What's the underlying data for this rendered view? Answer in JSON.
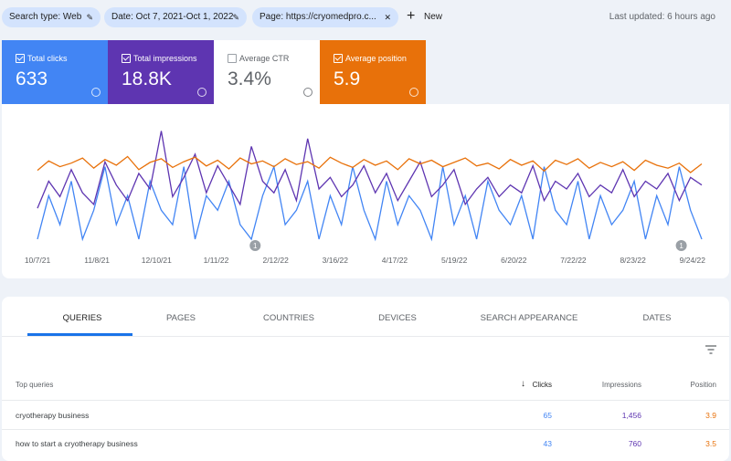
{
  "filters": [
    "Search type: Web",
    "Date: Oct 7, 2021-Oct 1, 2022",
    "Page: https://cryomedpro.c..."
  ],
  "new_button": "New",
  "last_updated": "Last updated: 6 hours ago",
  "metrics": [
    {
      "name": "Total clicks",
      "value": "633",
      "checked": true,
      "color": "#4285f4"
    },
    {
      "name": "Total impressions",
      "value": "18.8K",
      "checked": true,
      "color": "#5e35b1"
    },
    {
      "name": "Average CTR",
      "value": "3.4%",
      "checked": false,
      "color": "#ffffff"
    },
    {
      "name": "Average position",
      "value": "5.9",
      "checked": true,
      "color": "#e8710a"
    }
  ],
  "chart_data": {
    "type": "line",
    "xlim": [
      0,
      357
    ],
    "xticks": [
      {
        "value": 0,
        "label": "10/7/21"
      },
      {
        "value": 32,
        "label": "11/8/21"
      },
      {
        "value": 64,
        "label": "12/10/21"
      },
      {
        "value": 96,
        "label": "1/11/22"
      },
      {
        "value": 128,
        "label": "2/12/22"
      },
      {
        "value": 160,
        "label": "3/16/22"
      },
      {
        "value": 192,
        "label": "4/17/22"
      },
      {
        "value": 224,
        "label": "5/19/22"
      },
      {
        "value": 256,
        "label": "6/20/22"
      },
      {
        "value": 288,
        "label": "7/22/22"
      },
      {
        "value": 320,
        "label": "8/23/22"
      },
      {
        "value": 352,
        "label": "9/24/22"
      }
    ],
    "annotations": [
      {
        "x": 117,
        "label": "1"
      },
      {
        "x": 346,
        "label": "1"
      }
    ],
    "series": [
      {
        "name": "Total clicks",
        "color": "#4285f4",
        "ylim": [
          0,
          8
        ],
        "values": [
          0,
          3,
          1,
          4,
          0,
          2,
          5,
          1,
          3,
          0,
          4,
          2,
          1,
          5,
          0,
          3,
          2,
          4,
          1,
          0,
          3,
          5,
          1,
          2,
          4,
          0,
          3,
          1,
          5,
          2,
          0,
          4,
          1,
          3,
          2,
          0,
          5,
          1,
          3,
          0,
          4,
          2,
          1,
          3,
          0,
          5,
          2,
          1,
          4,
          0,
          3,
          1,
          2,
          4,
          0,
          3,
          1,
          5,
          2,
          0
        ]
      },
      {
        "name": "Total impressions",
        "color": "#5e35b1",
        "ylim": [
          0,
          150
        ],
        "values": [
          40,
          75,
          55,
          90,
          60,
          45,
          100,
          70,
          50,
          85,
          65,
          140,
          55,
          80,
          110,
          60,
          95,
          70,
          45,
          120,
          75,
          60,
          90,
          50,
          130,
          65,
          80,
          55,
          70,
          95,
          60,
          85,
          50,
          75,
          100,
          55,
          70,
          90,
          45,
          65,
          80,
          55,
          70,
          60,
          95,
          50,
          75,
          65,
          85,
          55,
          70,
          60,
          90,
          55,
          75,
          65,
          85,
          50,
          80,
          70
        ]
      },
      {
        "name": "Average position",
        "color": "#e8710a",
        "ylim": [
          16,
          0
        ],
        "values": [
          6.5,
          5.2,
          6.0,
          5.5,
          4.8,
          6.2,
          5.0,
          5.8,
          4.6,
          6.4,
          5.4,
          4.9,
          6.1,
          5.3,
          4.7,
          5.9,
          5.1,
          6.3,
          4.8,
          5.6,
          5.2,
          6.0,
          4.9,
          5.7,
          5.3,
          6.2,
          4.7,
          5.5,
          6.1,
          5.0,
          5.8,
          5.2,
          6.4,
          4.9,
          5.6,
          5.1,
          6.0,
          5.4,
          4.8,
          5.9,
          5.5,
          6.3,
          5.0,
          5.8,
          5.2,
          6.6,
          5.1,
          5.7,
          4.9,
          6.2,
          5.4,
          6.0,
          5.3,
          6.5,
          5.1,
          5.8,
          6.2,
          5.5,
          6.8,
          5.6
        ]
      }
    ]
  },
  "tabs": [
    "QUERIES",
    "PAGES",
    "COUNTRIES",
    "DEVICES",
    "SEARCH APPEARANCE",
    "DATES"
  ],
  "table": {
    "columns": [
      "Top queries",
      "Clicks",
      "Impressions",
      "Position"
    ],
    "rows": [
      [
        "cryotherapy business",
        "65",
        "1,456",
        "3.9"
      ],
      [
        "how to start a cryotherapy business",
        "43",
        "760",
        "3.5"
      ]
    ]
  }
}
